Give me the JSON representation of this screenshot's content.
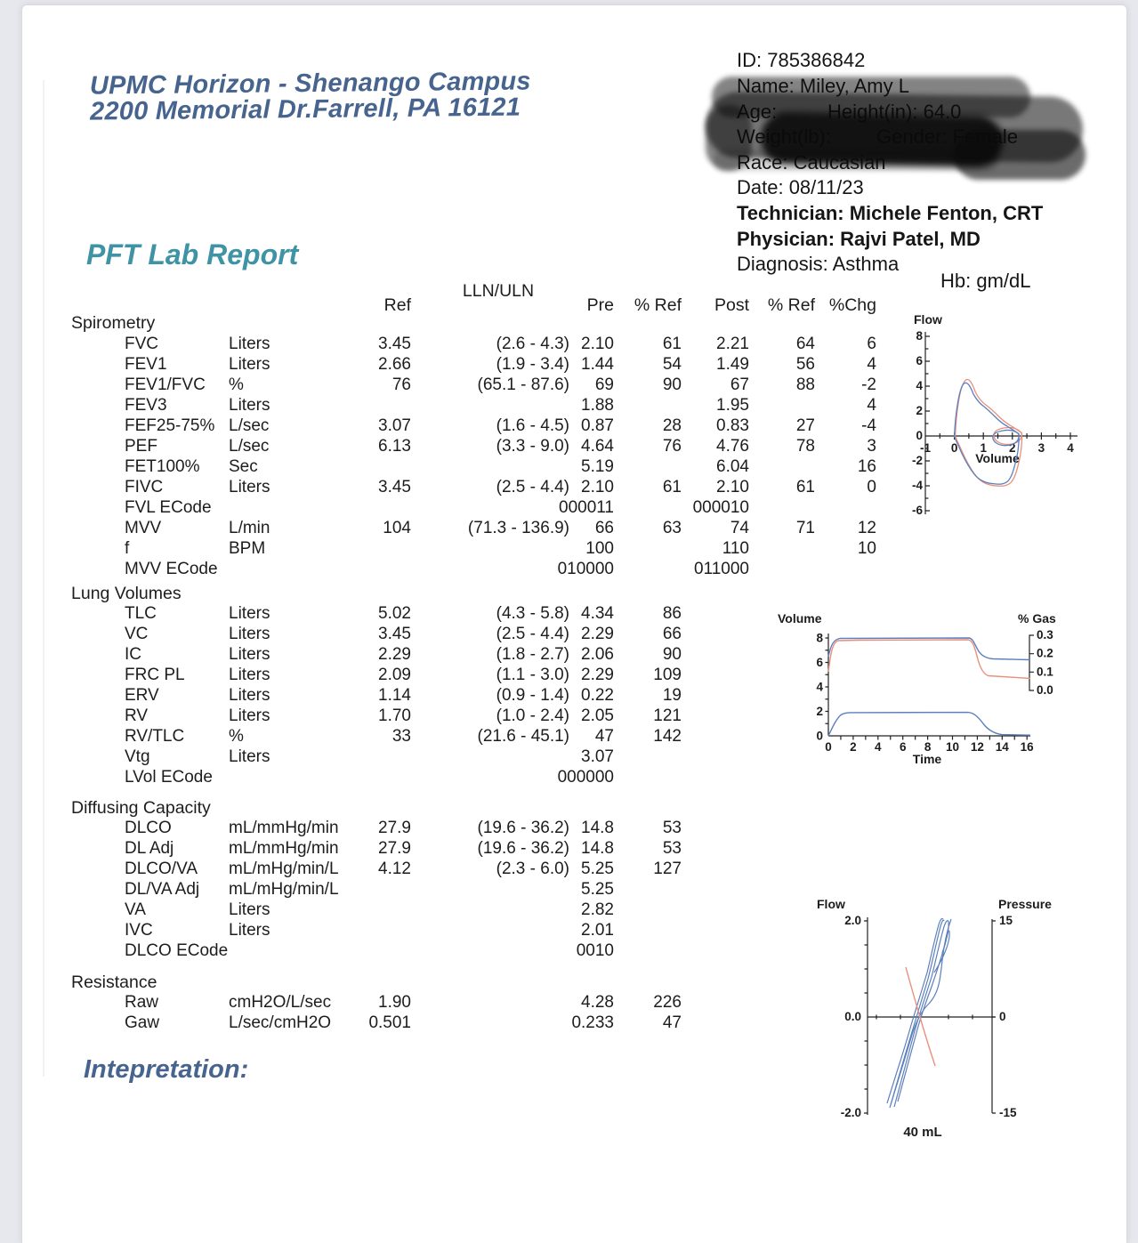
{
  "page": {
    "clinic_name": "UPMC Horizon - Shenango Campus",
    "clinic_address": "2200 Memorial Dr.Farrell, PA 16121",
    "report_title": "PFT Lab Report",
    "interpretation_label": "Intepretation:"
  },
  "patient": {
    "id_line": "ID: 785386842",
    "name_line": "Name: Miley, Amy L",
    "age_label": "Age:",
    "height_fragment": "Height(in): 64.0",
    "weight_label": "Weight(lb):",
    "gender_fragment": "Gender: Female",
    "race_line": "Race: Caucasian",
    "date_line": "Date: 08/11/23",
    "technician_line": "Technician: Michele Fenton, CRT",
    "physician_line": "Physician: Rajvi Patel, MD",
    "diagnosis_line": "Diagnosis: Asthma",
    "hb_line": "Hb:  gm/dL"
  },
  "table": {
    "headers": {
      "ref": "Ref",
      "lln": "LLN/ULN",
      "pre": "Pre",
      "pref": "% Ref",
      "post": "Post",
      "pref2": "% Ref",
      "chg": "%Chg"
    },
    "sections": [
      {
        "title": "Spirometry",
        "rows": [
          {
            "n": "FVC",
            "u": "Liters",
            "ref": "3.45",
            "lln": "(2.6 - 4.3)",
            "pre": "2.10",
            "pref": "61",
            "post": "2.21",
            "pref2": "64",
            "chg": "6"
          },
          {
            "n": "FEV1",
            "u": "Liters",
            "ref": "2.66",
            "lln": "(1.9 - 3.4)",
            "pre": "1.44",
            "pref": "54",
            "post": "1.49",
            "pref2": "56",
            "chg": "4"
          },
          {
            "n": "FEV1/FVC",
            "u": "%",
            "ref": "76",
            "lln": "(65.1 - 87.6)",
            "pre": "69",
            "pref": "90",
            "post": "67",
            "pref2": "88",
            "chg": "-2"
          },
          {
            "n": "FEV3",
            "u": "Liters",
            "pre": "1.88",
            "post": "1.95",
            "chg": "4"
          },
          {
            "n": "FEF25-75%",
            "u": "L/sec",
            "ref": "3.07",
            "lln": "(1.6 - 4.5)",
            "pre": "0.87",
            "pref": "28",
            "post": "0.83",
            "pref2": "27",
            "chg": "-4"
          },
          {
            "n": "PEF",
            "u": "L/sec",
            "ref": "6.13",
            "lln": "(3.3 - 9.0)",
            "pre": "4.64",
            "pref": "76",
            "post": "4.76",
            "pref2": "78",
            "chg": "3"
          },
          {
            "n": "FET100%",
            "u": "Sec",
            "pre": "5.19",
            "post": "6.04",
            "chg": "16"
          },
          {
            "n": "FIVC",
            "u": "Liters",
            "ref": "3.45",
            "lln": "(2.5 - 4.4)",
            "pre": "2.10",
            "pref": "61",
            "post": "2.10",
            "pref2": "61",
            "chg": "0"
          },
          {
            "n": "FVL ECode",
            "pre": "000011",
            "post": "000010"
          },
          {
            "n": "MVV",
            "u": "L/min",
            "ref": "104",
            "lln": "(71.3 - 136.9)",
            "pre": "66",
            "pref": "63",
            "post": "74",
            "pref2": "71",
            "chg": "12"
          },
          {
            "n": "f",
            "u": "BPM",
            "pre": "100",
            "post": "110",
            "chg": "10"
          },
          {
            "n": "MVV ECode",
            "pre": "010000",
            "post": "011000"
          }
        ]
      },
      {
        "title": "Lung Volumes",
        "rows": [
          {
            "n": "TLC",
            "u": "Liters",
            "ref": "5.02",
            "lln": "(4.3 - 5.8)",
            "pre": "4.34",
            "pref": "86"
          },
          {
            "n": "VC",
            "u": "Liters",
            "ref": "3.45",
            "lln": "(2.5 - 4.4)",
            "pre": "2.29",
            "pref": "66"
          },
          {
            "n": "IC",
            "u": "Liters",
            "ref": "2.29",
            "lln": "(1.8 - 2.7)",
            "pre": "2.06",
            "pref": "90"
          },
          {
            "n": "FRC PL",
            "u": "Liters",
            "ref": "2.09",
            "lln": "(1.1 - 3.0)",
            "pre": "2.29",
            "pref": "109"
          },
          {
            "n": "ERV",
            "u": "Liters",
            "ref": "1.14",
            "lln": "(0.9 - 1.4)",
            "pre": "0.22",
            "pref": "19"
          },
          {
            "n": "RV",
            "u": "Liters",
            "ref": "1.70",
            "lln": "(1.0 - 2.4)",
            "pre": "2.05",
            "pref": "121"
          },
          {
            "n": "RV/TLC",
            "u": "%",
            "ref": "33",
            "lln": "(21.6 - 45.1)",
            "pre": "47",
            "pref": "142"
          },
          {
            "n": "Vtg",
            "u": "Liters",
            "pre": "3.07"
          },
          {
            "n": "LVol ECode",
            "pre": "000000"
          }
        ]
      },
      {
        "title": "Diffusing Capacity",
        "rows": [
          {
            "n": "DLCO",
            "u": "mL/mmHg/min",
            "ref": "27.9",
            "lln": "(19.6 - 36.2)",
            "pre": "14.8",
            "pref": "53"
          },
          {
            "n": "DL Adj",
            "u": "mL/mmHg/min",
            "ref": "27.9",
            "lln": "(19.6 - 36.2)",
            "pre": "14.8",
            "pref": "53"
          },
          {
            "n": "DLCO/VA",
            "u": "mL/mHg/min/L",
            "ref": "4.12",
            "lln": "(2.3 - 6.0)",
            "pre": "5.25",
            "pref": "127"
          },
          {
            "n": "DL/VA Adj",
            "u": "mL/mHg/min/L",
            "pre": "5.25"
          },
          {
            "n": "VA",
            "u": "Liters",
            "pre": "2.82"
          },
          {
            "n": "IVC",
            "u": "Liters",
            "pre": "2.01"
          },
          {
            "n": "DLCO ECode",
            "pre": "0010"
          }
        ]
      },
      {
        "title": "Resistance",
        "rows": [
          {
            "n": "Raw",
            "u": "cmH2O/L/sec",
            "ref": "1.90",
            "pre": "4.28",
            "pref": "226"
          },
          {
            "n": "Gaw",
            "u": "L/sec/cmH2O",
            "ref": "0.501",
            "pre": "0.233",
            "pref": "47"
          }
        ]
      }
    ]
  },
  "chart_data": [
    {
      "type": "line",
      "name": "flow_volume_loop",
      "ylabel": "Flow",
      "xlabel": "Volume",
      "xlim": [
        -1,
        4
      ],
      "ylim": [
        -6,
        8
      ],
      "yticks": [
        "8",
        "6",
        "4",
        "2",
        "0",
        "-2",
        "-4",
        "-6"
      ],
      "xticks": [
        "-1",
        "0",
        "1",
        "2",
        "3",
        "4"
      ],
      "series": [
        {
          "name": "pre",
          "color": "#5c80bd",
          "expiratory": [
            [
              0,
              0
            ],
            [
              0.15,
              2.8
            ],
            [
              0.33,
              4.2
            ],
            [
              0.6,
              3.4
            ],
            [
              1.0,
              2.4
            ],
            [
              1.4,
              1.5
            ],
            [
              1.8,
              0.8
            ],
            [
              2.2,
              0.2
            ]
          ],
          "inspiratory": [
            [
              2.2,
              -0.3
            ],
            [
              2.0,
              -2.6
            ],
            [
              1.6,
              -3.7
            ],
            [
              1.3,
              -3.85
            ],
            [
              0.8,
              -3.6
            ],
            [
              0.4,
              -2.5
            ],
            [
              0.1,
              -0.9
            ],
            [
              0,
              0
            ]
          ],
          "tidal_loop": [
            [
              2.2,
              0.1
            ],
            [
              1.8,
              0.5
            ],
            [
              1.4,
              0.3
            ],
            [
              1.3,
              -0.3
            ],
            [
              1.7,
              -0.8
            ],
            [
              2.1,
              -0.6
            ],
            [
              2.2,
              0.1
            ]
          ]
        },
        {
          "name": "post",
          "color": "#e8907c",
          "expiratory": [
            [
              0,
              0
            ],
            [
              0.2,
              3.2
            ],
            [
              0.4,
              4.5
            ],
            [
              0.7,
              3.3
            ],
            [
              1.1,
              2.3
            ],
            [
              1.5,
              1.4
            ],
            [
              1.9,
              0.7
            ],
            [
              2.3,
              0.1
            ]
          ],
          "inspiratory": [
            [
              2.3,
              -0.4
            ],
            [
              2.1,
              -2.8
            ],
            [
              1.7,
              -3.9
            ],
            [
              1.2,
              -4.0
            ],
            [
              0.8,
              -3.6
            ],
            [
              0.4,
              -2.4
            ],
            [
              0.1,
              -0.8
            ],
            [
              0,
              0
            ]
          ],
          "tidal_loop": [
            [
              2.3,
              0.2
            ],
            [
              1.9,
              0.6
            ],
            [
              1.4,
              0.4
            ],
            [
              1.3,
              -0.2
            ],
            [
              1.7,
              -0.7
            ],
            [
              2.2,
              -0.5
            ],
            [
              2.3,
              0.2
            ]
          ]
        }
      ]
    },
    {
      "type": "line",
      "name": "volume_time",
      "ylabel": "Volume",
      "ylabel_right": "% Gas",
      "xlabel": "Time",
      "xlim": [
        0,
        16
      ],
      "ylim": [
        0,
        8
      ],
      "yticks": [
        "8",
        "6",
        "4",
        "2",
        "0"
      ],
      "xticks": [
        "0",
        "2",
        "4",
        "6",
        "8",
        "10",
        "12",
        "14",
        "16"
      ],
      "gas_ticks": [
        "0.3",
        "0.2",
        "0.1",
        "0.0"
      ],
      "series": [
        {
          "name": "gas-red",
          "color": "#e8907c",
          "points": [
            [
              0,
              5.2
            ],
            [
              0.6,
              8
            ],
            [
              11.3,
              8
            ],
            [
              12.3,
              5.1
            ],
            [
              15.5,
              4.9
            ]
          ]
        },
        {
          "name": "gas-blue",
          "color": "#5c80bd",
          "points": [
            [
              0,
              6.5
            ],
            [
              0.5,
              8
            ],
            [
              11.3,
              8
            ],
            [
              12.5,
              6.4
            ],
            [
              15.5,
              6.3
            ]
          ]
        },
        {
          "name": "tidal-volume-blue",
          "color": "#5c80bd",
          "points": [
            [
              0,
              0
            ],
            [
              1.3,
              1.9
            ],
            [
              11.2,
              1.9
            ],
            [
              13,
              0.5
            ],
            [
              14,
              0.15
            ],
            [
              15.5,
              0.1
            ]
          ]
        }
      ]
    },
    {
      "type": "line",
      "name": "flow_pressure",
      "ylabel": "Flow",
      "ylabel_right": "Pressure",
      "left_ticks": [
        "2.0",
        "0.0",
        "-2.0"
      ],
      "right_ticks": [
        "15",
        "0",
        "-15"
      ],
      "annotation": "40 mL",
      "series": [
        {
          "name": "breathing-loops",
          "color": "#5c80bd",
          "description": "multiple steep S-shaped loops rising left-bottom to right-top"
        },
        {
          "name": "resistance-line",
          "color": "#e8907c",
          "description": "straight negative-slope line through origin"
        }
      ]
    }
  ]
}
